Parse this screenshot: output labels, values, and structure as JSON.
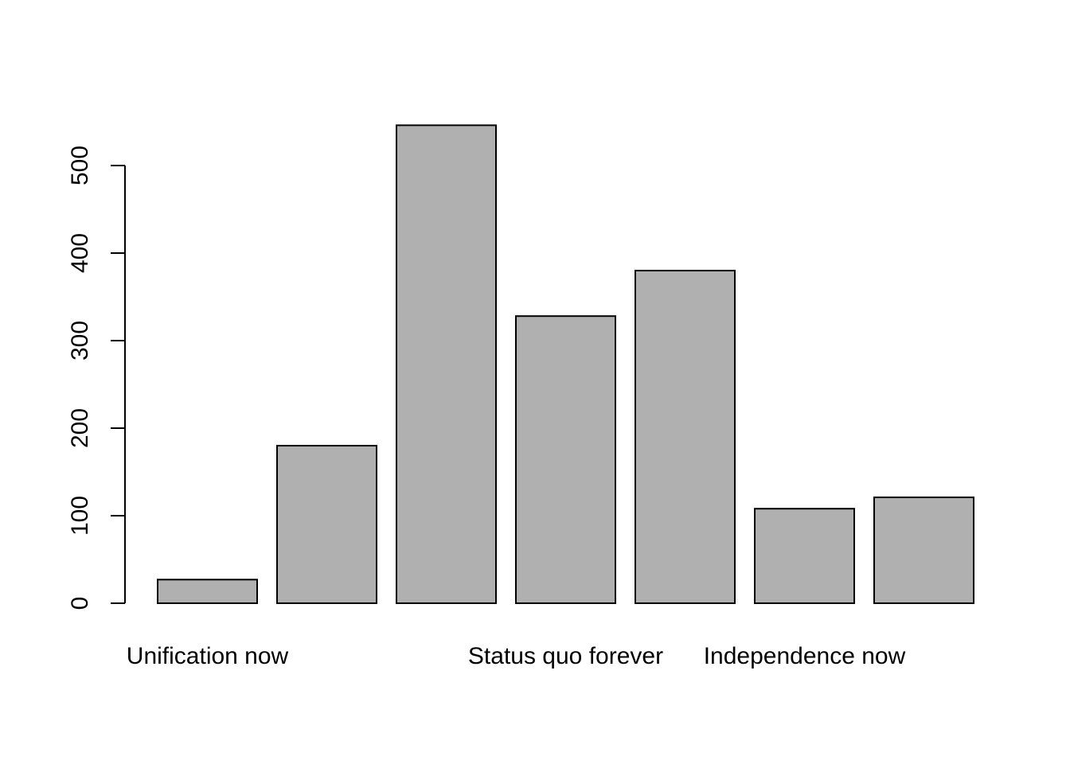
{
  "chart_data": {
    "type": "bar",
    "title": "",
    "xlabel": "",
    "ylabel": "",
    "categories": [
      "Unification now",
      "",
      "",
      "Status quo forever",
      "",
      "Independence now",
      ""
    ],
    "values": [
      27,
      180,
      546,
      328,
      380,
      108,
      121
    ],
    "ylim": [
      0,
      546
    ],
    "yticks": [
      0,
      100,
      200,
      300,
      400,
      500
    ],
    "grid": false,
    "legend": "none",
    "colors": {
      "bar_fill": "#b0b0b0",
      "bar_stroke": "#000000",
      "axis": "#000000",
      "background": "#ffffff"
    }
  }
}
